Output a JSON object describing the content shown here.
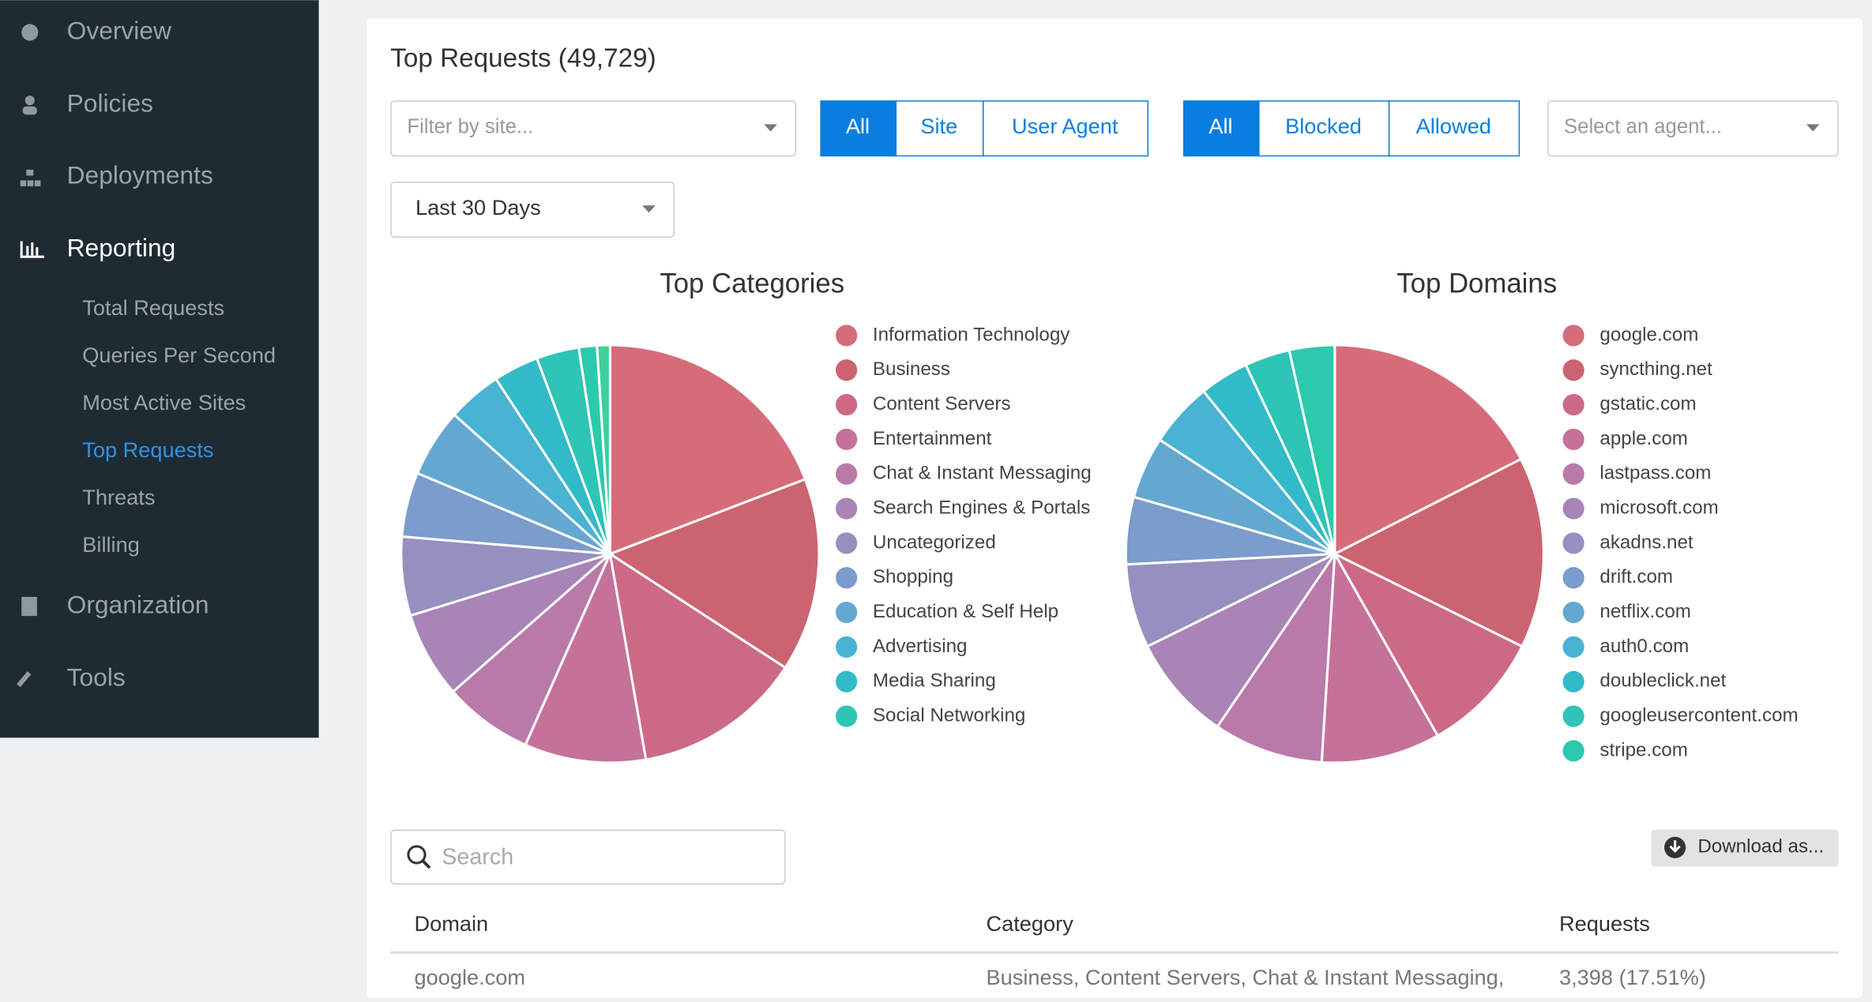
{
  "sidebar": {
    "items": [
      "Overview",
      "Policies",
      "Deployments",
      "Reporting"
    ],
    "subitems": [
      "Total Requests",
      "Queries Per Second",
      "Most Active Sites",
      "Top Requests",
      "Threats",
      "Billing"
    ],
    "items_after": [
      "Organization",
      "Tools"
    ]
  },
  "header": {
    "title": "Top Requests (49,729)"
  },
  "filters": {
    "site_placeholder": "Filter by site...",
    "group1": [
      "All",
      "Site",
      "User Agent"
    ],
    "group2": [
      "All",
      "Blocked",
      "Allowed"
    ],
    "agent_placeholder": "Select an agent...",
    "range": "Last 30 Days"
  },
  "charts": [
    {
      "type": "pie",
      "title": "Top Categories",
      "categories": [
        "Information Technology",
        "Business",
        "Content Servers",
        "Entertainment",
        "Chat & Instant Messaging",
        "Search Engines & Portals",
        "Uncategorized",
        "Shopping",
        "Education & Self Help",
        "Advertising",
        "Media Sharing",
        "Social Networking",
        null,
        null
      ],
      "values": [
        19.2,
        15.0,
        13.1,
        9.4,
        6.9,
        6.7,
        6.1,
        5.0,
        5.3,
        4.2,
        3.5,
        3.3,
        1.4,
        1.0
      ],
      "colors": [
        "#d66c7a",
        "#cb6470",
        "#cc6a85",
        "#c5729a",
        "#b97aa9",
        "#a884b7",
        "#9490c0",
        "#7b9ccc",
        "#64a8d1",
        "#4ab2d2",
        "#33bac8",
        "#2ec4b6",
        "#2dc9ac",
        "#3fcf9b"
      ]
    },
    {
      "type": "pie",
      "title": "Top Domains",
      "categories": [
        "google.com",
        "syncthing.net",
        "gstatic.com",
        "apple.com",
        "lastpass.com",
        "microsoft.com",
        "akadns.net",
        "drift.com",
        "netflix.com",
        "auth0.com",
        "doubleclick.net",
        "googleusercontent.com",
        "stripe.com"
      ],
      "values": [
        17.5,
        14.8,
        9.5,
        9.2,
        8.5,
        8.2,
        6.5,
        5.2,
        4.8,
        5.0,
        3.8,
        3.5,
        3.5
      ],
      "colors": [
        "#d66c7a",
        "#cb6470",
        "#cc6a85",
        "#c5729a",
        "#b97aa9",
        "#a884b7",
        "#9490c0",
        "#7b9ccc",
        "#64a8d1",
        "#4ab2d2",
        "#33bac8",
        "#2ec4b6",
        "#2dc9ac"
      ]
    }
  ],
  "table": {
    "search_placeholder": "Search",
    "download": "Download as...",
    "columns": [
      "Domain",
      "Category",
      "Requests"
    ],
    "rows": [
      [
        "google.com",
        "Business, Content Servers, Chat & Instant Messaging,",
        "3,398 (17.51%)"
      ]
    ]
  }
}
